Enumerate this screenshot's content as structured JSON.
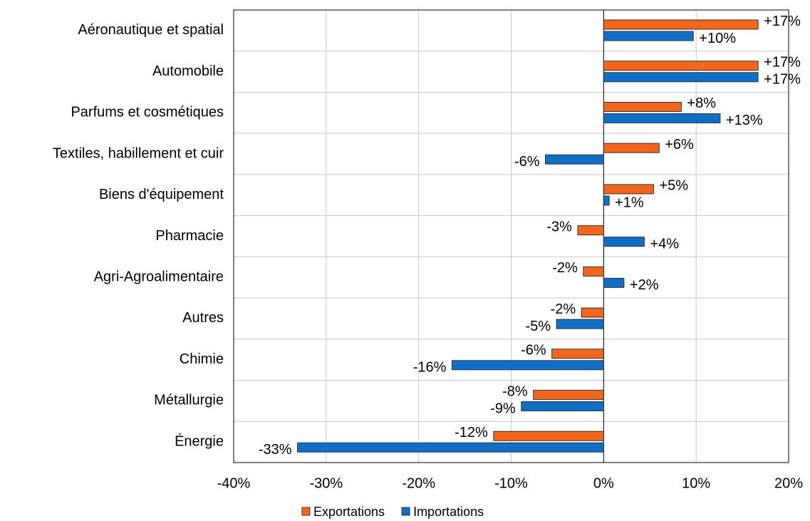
{
  "chart_data": {
    "type": "hbar",
    "categories": [
      "Aéronautique et spatial",
      "Automobile",
      "Parfums et cosmétiques",
      "Textiles, habillement et cuir",
      "Biens d'équipement",
      "Pharmacie",
      "Agri-Agroalimentaire",
      "Autres",
      "Chimie",
      "Métallurgie",
      "Énergie"
    ],
    "series": [
      {
        "name": "Exportations",
        "color": "#f4661b",
        "values": [
          16.7,
          16.7,
          8.4,
          6.0,
          5.4,
          -2.8,
          -2.2,
          -2.4,
          -5.6,
          -7.6,
          -11.9
        ],
        "value_labels": [
          "+17%",
          "+17%",
          "+8%",
          "+6%",
          "+5%",
          "-3%",
          "-2%",
          "-2%",
          "-6%",
          "-8%",
          "-12%"
        ]
      },
      {
        "name": "Importations",
        "color": "#0f6fc6",
        "values": [
          9.7,
          16.7,
          12.6,
          -6.3,
          0.6,
          4.4,
          2.2,
          -5.1,
          -16.4,
          -8.9,
          -33.1
        ],
        "value_labels": [
          "+10%",
          "+17%",
          "+13%",
          "-6%",
          "+1%",
          "+4%",
          "+2%",
          "-5%",
          "-16%",
          "-9%",
          "-33%"
        ]
      }
    ],
    "xlim": [
      -40,
      20
    ],
    "xticks": [
      {
        "value": -40,
        "label": "-40%"
      },
      {
        "value": -30,
        "label": "-30%"
      },
      {
        "value": -20,
        "label": "-20%"
      },
      {
        "value": -10,
        "label": "-10%"
      },
      {
        "value": 0,
        "label": "0%"
      },
      {
        "value": 10,
        "label": "10%"
      },
      {
        "value": 20,
        "label": "20%"
      }
    ],
    "grid": true,
    "legend": "bottom"
  }
}
